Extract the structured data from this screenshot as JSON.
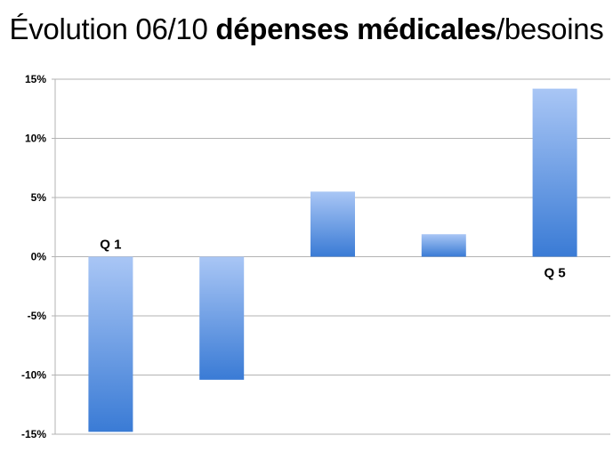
{
  "title": {
    "part1": "Évolution 06/10 ",
    "part2": "dépenses médicales",
    "part3": "/besoins"
  },
  "colors": {
    "bar_light": "#a9c6f5",
    "bar_dark": "#3a7bd5",
    "grid": "#b3b3b3"
  },
  "chart_data": {
    "type": "bar",
    "title": "Évolution 06/10 dépenses médicales/besoins",
    "categories": [
      "Q 1",
      "",
      "",
      "",
      "Q 5"
    ],
    "values": [
      -14.8,
      -10.4,
      5.5,
      1.9,
      14.2
    ],
    "value_unit": "%",
    "ylim": [
      -15,
      15
    ],
    "yticks": [
      15,
      10,
      5,
      0,
      -5,
      -10,
      -15
    ],
    "ytick_labels": [
      "15%",
      "10%",
      "5%",
      "0%",
      "-5%",
      "-10%",
      "-15%"
    ],
    "grid": true,
    "legend": "none"
  }
}
